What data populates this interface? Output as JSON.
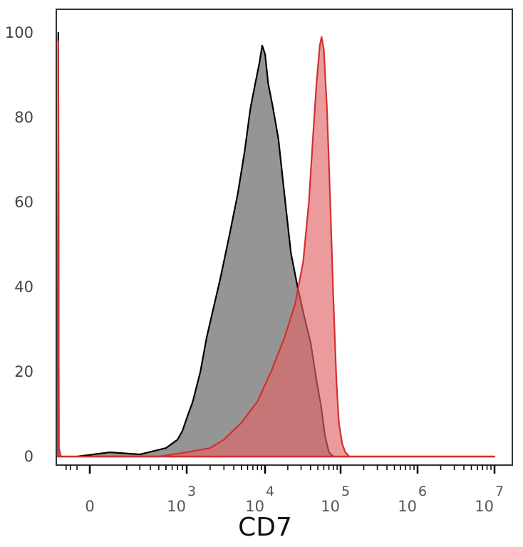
{
  "chart_data": {
    "type": "area",
    "xlabel": "CD7",
    "ylabel": "",
    "ylim": [
      0,
      105
    ],
    "x_scale": "biexponential (log with linear region near zero)",
    "y_ticks": [
      {
        "value": 0,
        "label": "0"
      },
      {
        "value": 20,
        "label": "20"
      },
      {
        "value": 40,
        "label": "40"
      },
      {
        "value": 60,
        "label": "60"
      },
      {
        "value": 80,
        "label": "80"
      },
      {
        "value": 100,
        "label": "100"
      }
    ],
    "x_ticks": [
      {
        "value": 0,
        "base": "0",
        "exp": ""
      },
      {
        "value": 1000,
        "base": "10",
        "exp": "3"
      },
      {
        "value": 10000,
        "base": "10",
        "exp": "4"
      },
      {
        "value": 100000,
        "base": "10",
        "exp": "5"
      },
      {
        "value": 1000000,
        "base": "10",
        "exp": "6"
      },
      {
        "value": 10000000,
        "base": "10",
        "exp": "7"
      }
    ],
    "series": [
      {
        "color": "#000000",
        "fill": "#7a7a7a",
        "fill_opacity": 0.8,
        "points": [
          [
            -2000,
            0
          ],
          [
            -1900,
            100
          ],
          [
            -1800,
            2
          ],
          [
            -1500,
            0
          ],
          [
            -300,
            0
          ],
          [
            100,
            1
          ],
          [
            300,
            0.5
          ],
          [
            600,
            2
          ],
          [
            800,
            4
          ],
          [
            900,
            6
          ],
          [
            1000,
            9
          ],
          [
            1200,
            13
          ],
          [
            1500,
            20
          ],
          [
            1800,
            28
          ],
          [
            2200,
            35
          ],
          [
            2700,
            42
          ],
          [
            3500,
            52
          ],
          [
            4500,
            62
          ],
          [
            5500,
            72
          ],
          [
            6500,
            82
          ],
          [
            7500,
            88
          ],
          [
            8500,
            93
          ],
          [
            9200,
            97
          ],
          [
            10000,
            95
          ],
          [
            11000,
            88
          ],
          [
            12500,
            83
          ],
          [
            15000,
            75
          ],
          [
            18000,
            62
          ],
          [
            22000,
            48
          ],
          [
            27000,
            40
          ],
          [
            33000,
            33
          ],
          [
            40000,
            27
          ],
          [
            48000,
            18
          ],
          [
            55000,
            12
          ],
          [
            62000,
            5
          ],
          [
            70000,
            1
          ],
          [
            80000,
            0
          ],
          [
            10000000,
            0
          ]
        ]
      },
      {
        "color": "#d32f2f",
        "fill": "#e06666",
        "fill_opacity": 0.65,
        "points": [
          [
            -2000,
            0
          ],
          [
            -1900,
            98
          ],
          [
            -1800,
            2
          ],
          [
            -1500,
            0
          ],
          [
            500,
            0
          ],
          [
            1000,
            1
          ],
          [
            2000,
            2
          ],
          [
            3000,
            4
          ],
          [
            5000,
            8
          ],
          [
            8000,
            13
          ],
          [
            12000,
            20
          ],
          [
            18000,
            28
          ],
          [
            25000,
            36
          ],
          [
            32000,
            46
          ],
          [
            38000,
            60
          ],
          [
            43000,
            75
          ],
          [
            48000,
            88
          ],
          [
            53000,
            97
          ],
          [
            56000,
            99
          ],
          [
            60000,
            96
          ],
          [
            66000,
            82
          ],
          [
            73000,
            60
          ],
          [
            80000,
            38
          ],
          [
            88000,
            18
          ],
          [
            95000,
            8
          ],
          [
            105000,
            3
          ],
          [
            115000,
            1
          ],
          [
            130000,
            0
          ],
          [
            10000000,
            0
          ]
        ]
      }
    ]
  }
}
